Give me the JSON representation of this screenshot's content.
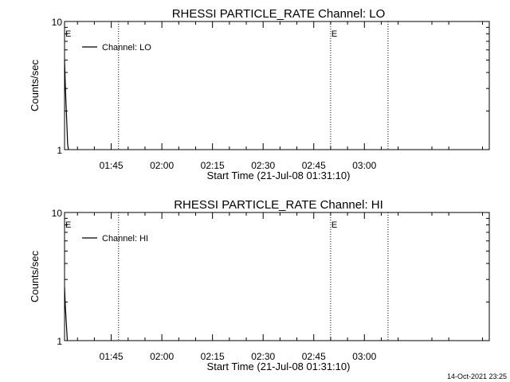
{
  "chart_data": [
    {
      "type": "line",
      "title": "RHESSI PARTICLE_RATE Channel: LO",
      "xlabel": "Start Time (21-Jul-08 01:31:10)",
      "ylabel": "Counts/sec",
      "yscale": "log",
      "ylim": [
        1,
        10
      ],
      "xlim": [
        "01:31:10",
        "03:37:00"
      ],
      "x_ticks": [
        "01:45",
        "02:00",
        "02:15",
        "02:30",
        "02:45",
        "03:00"
      ],
      "y_ticks": [
        "1",
        "10"
      ],
      "legend": {
        "placement": "top-left",
        "entries": [
          "Channel: LO"
        ]
      },
      "series": [
        {
          "name": "Channel: LO",
          "x": [
            "01:31:10",
            "01:31:25",
            "01:32:05",
            "01:32:20"
          ],
          "y": [
            5.0,
            3.0,
            1.1,
            1.0
          ]
        }
      ],
      "event_lines": [
        {
          "x": "01:47:10",
          "label": ""
        },
        {
          "x": "02:50:00",
          "label": "E"
        },
        {
          "x": "03:07:00",
          "label": ""
        }
      ],
      "edge_label": "E"
    },
    {
      "type": "line",
      "title": "RHESSI PARTICLE_RATE Channel: HI",
      "xlabel": "Start Time (21-Jul-08 01:31:10)",
      "ylabel": "Counts/sec",
      "yscale": "log",
      "ylim": [
        1,
        10
      ],
      "xlim": [
        "01:31:10",
        "03:37:00"
      ],
      "x_ticks": [
        "01:45",
        "02:00",
        "02:15",
        "02:30",
        "02:45",
        "03:00"
      ],
      "y_ticks": [
        "1",
        "10"
      ],
      "legend": {
        "placement": "top-left",
        "entries": [
          "Channel: HI"
        ]
      },
      "series": [
        {
          "name": "Channel: HI",
          "x": [
            "01:31:10",
            "01:31:25",
            "01:32:00"
          ],
          "y": [
            2.6,
            1.8,
            1.0
          ]
        }
      ],
      "event_lines": [
        {
          "x": "01:47:10",
          "label": ""
        },
        {
          "x": "02:50:00",
          "label": "E"
        },
        {
          "x": "03:07:00",
          "label": ""
        }
      ],
      "edge_label": "E"
    }
  ],
  "footer": {
    "timestamp": "14-Oct-2021 23:25"
  },
  "colors": {
    "background": "#ffffff",
    "foreground": "#000000"
  }
}
